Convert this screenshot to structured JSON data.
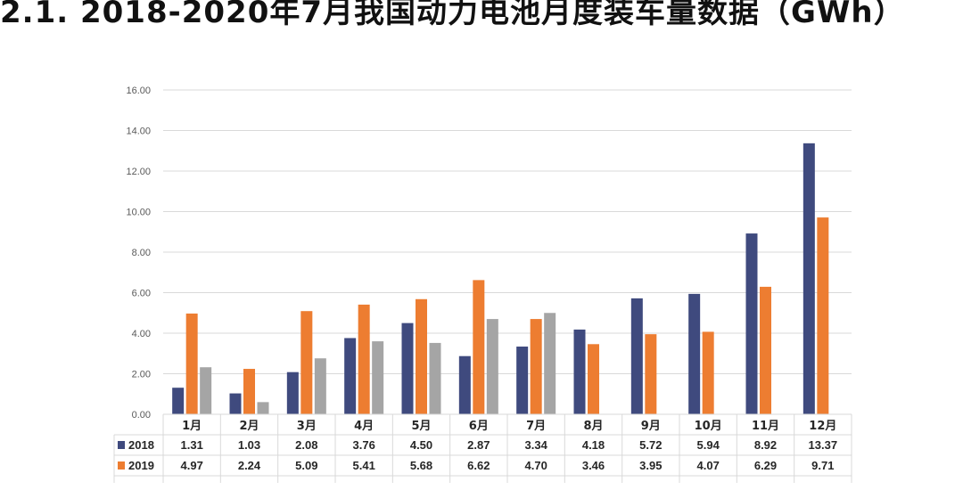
{
  "page": {
    "title": "2.1. 2018-2020年7月我国动力电池月度装车量数据（GWh）"
  },
  "chart_data": {
    "type": "bar",
    "title": "",
    "xlabel": "",
    "ylabel": "",
    "ylim": [
      0,
      16
    ],
    "yticks": [
      "0.00",
      "2.00",
      "4.00",
      "6.00",
      "8.00",
      "10.00",
      "12.00",
      "14.00",
      "16.00"
    ],
    "categories": [
      "1月",
      "2月",
      "3月",
      "4月",
      "5月",
      "6月",
      "7月",
      "8月",
      "9月",
      "10月",
      "11月",
      "12月"
    ],
    "grid": true,
    "legend": "data-table",
    "series": [
      {
        "name": "2018",
        "color": "#3f4a7e",
        "values": [
          1.31,
          1.03,
          2.08,
          3.76,
          4.5,
          2.87,
          3.34,
          4.18,
          5.72,
          5.94,
          8.92,
          13.37
        ],
        "labels": [
          "1.31",
          "1.03",
          "2.08",
          "3.76",
          "4.50",
          "2.87",
          "3.34",
          "4.18",
          "5.72",
          "5.94",
          "8.92",
          "13.37"
        ]
      },
      {
        "name": "2019",
        "color": "#ed7d31",
        "values": [
          4.97,
          2.24,
          5.09,
          5.41,
          5.68,
          6.62,
          4.7,
          3.46,
          3.95,
          4.07,
          6.29,
          9.71
        ],
        "labels": [
          "4.97",
          "2.24",
          "5.09",
          "5.41",
          "5.68",
          "6.62",
          "4.70",
          "3.46",
          "3.95",
          "4.07",
          "6.29",
          "9.71"
        ]
      },
      {
        "color": "#a5a5a5",
        "values": [
          2.32,
          0.6,
          2.76,
          3.6,
          3.52,
          4.7,
          5.0,
          null,
          null,
          null,
          null,
          null
        ]
      }
    ]
  }
}
